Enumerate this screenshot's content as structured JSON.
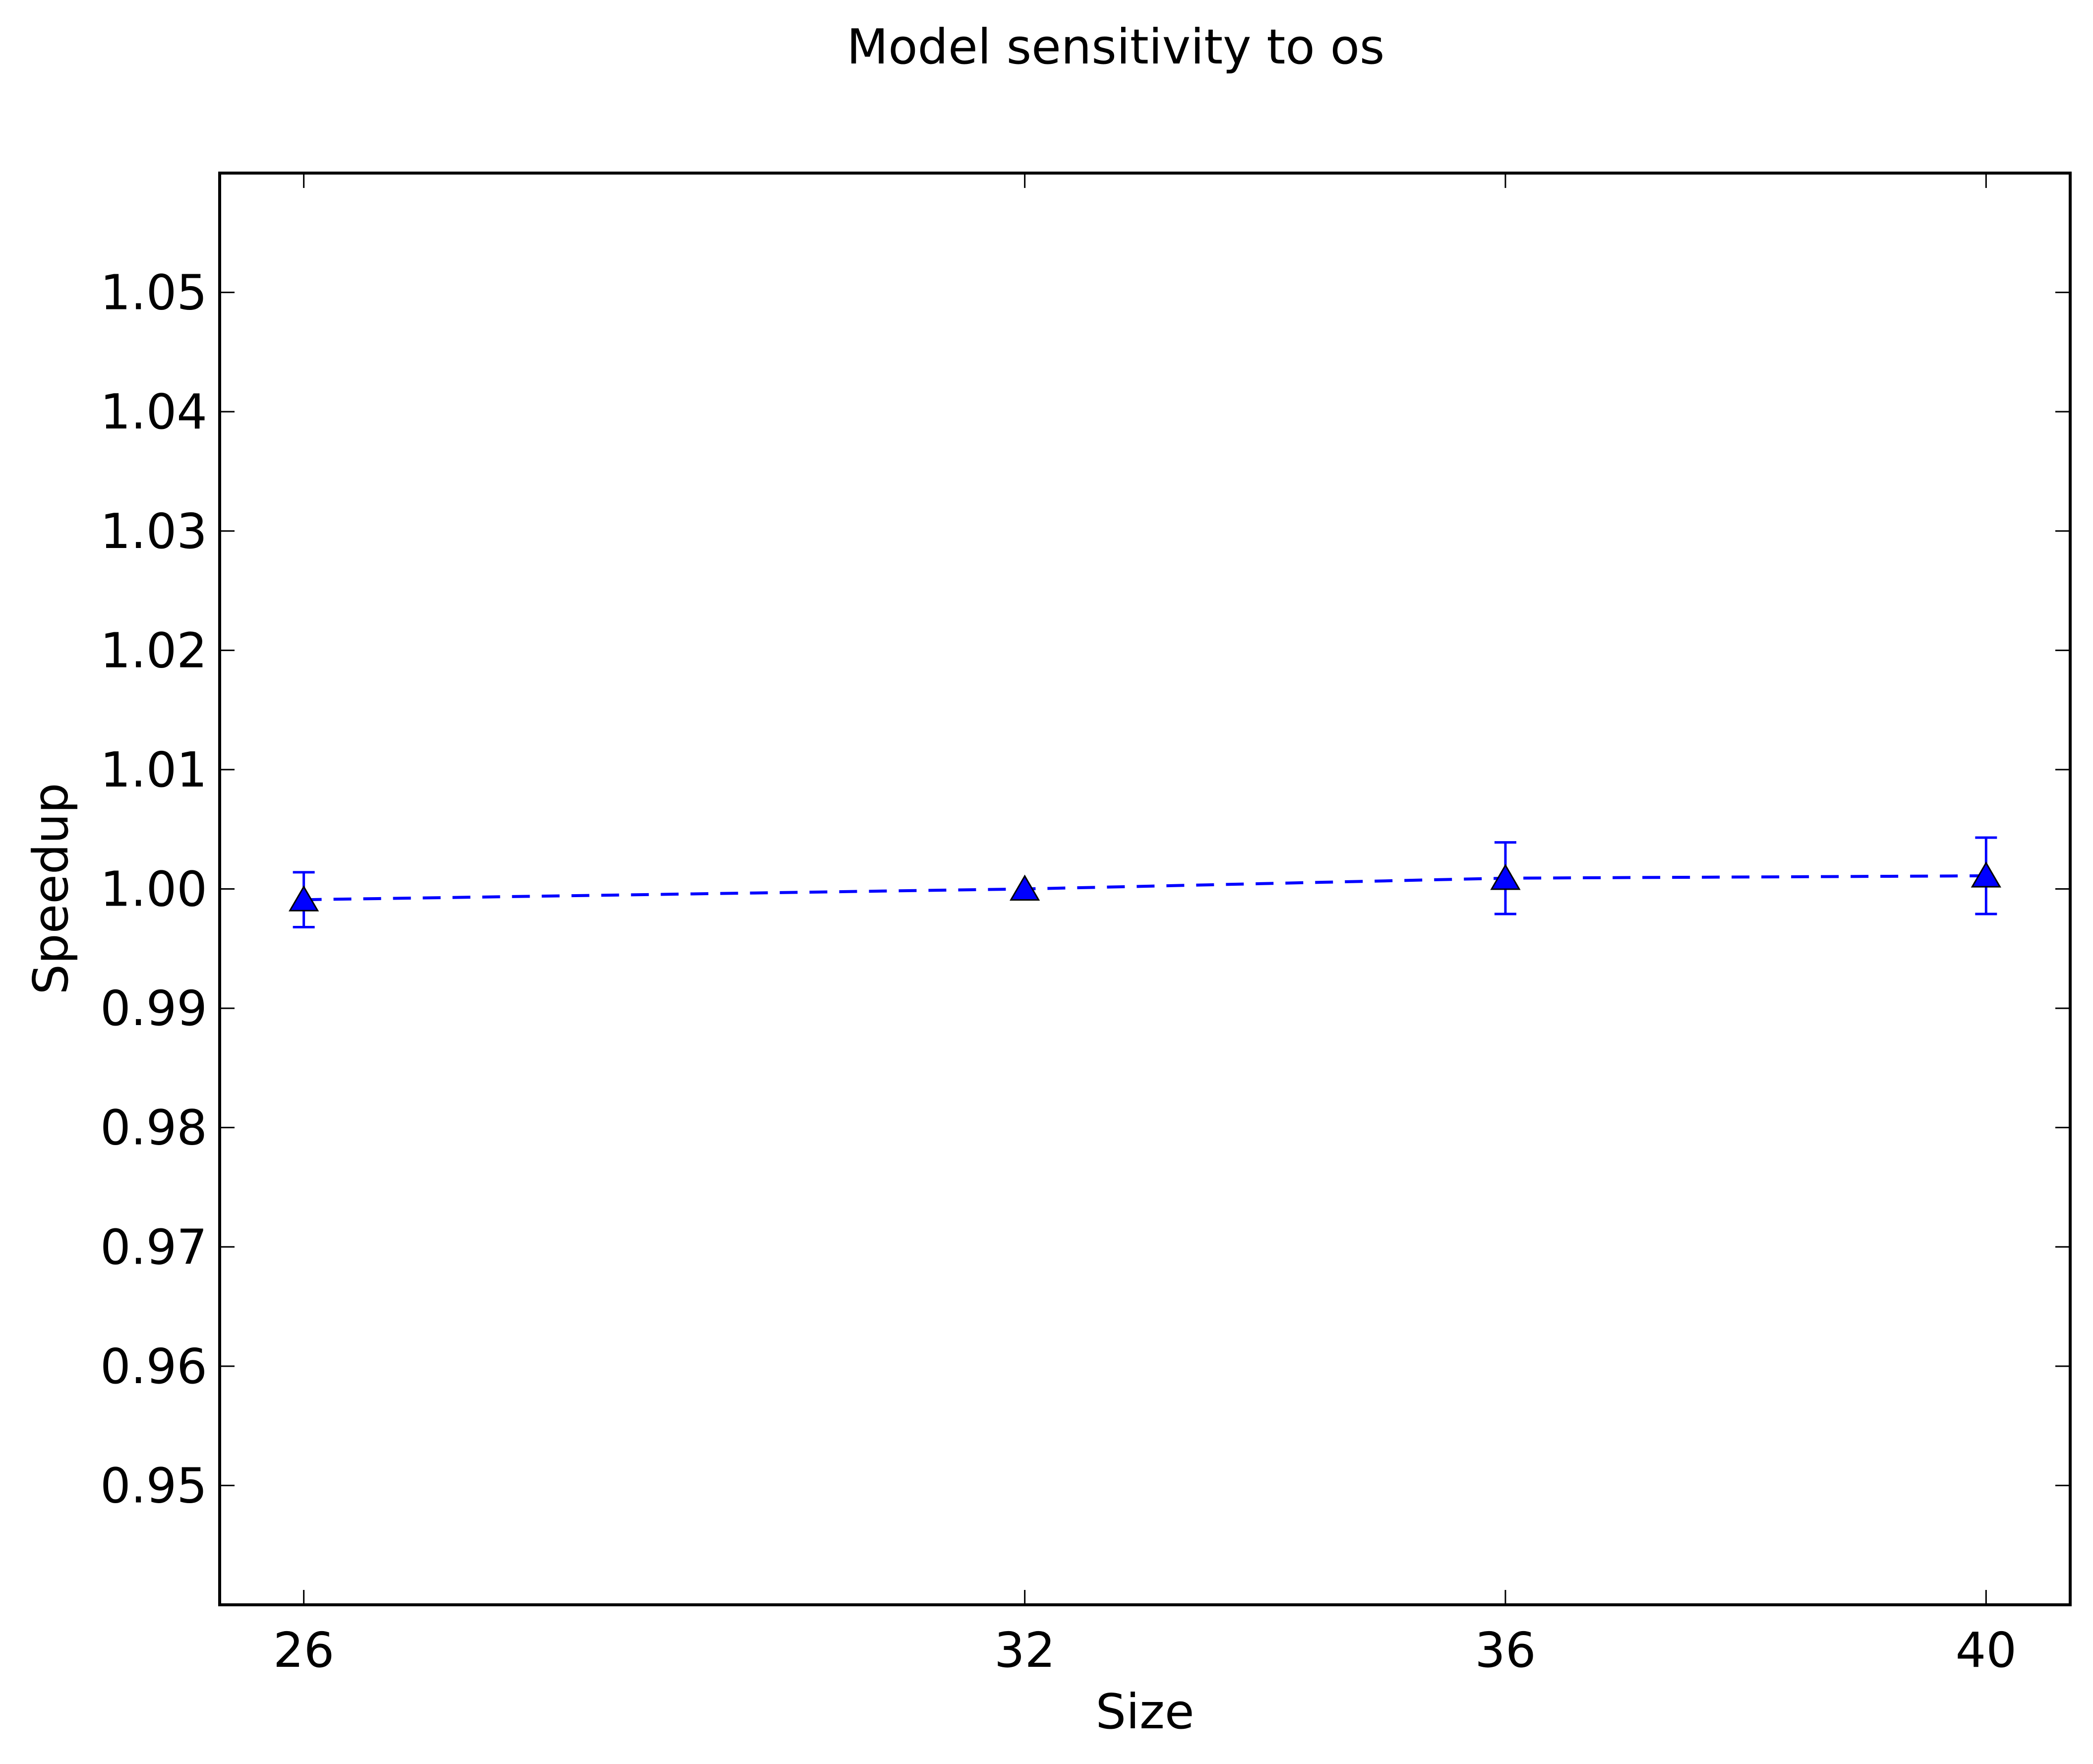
{
  "chart_data": {
    "type": "line",
    "title": "Model sensitivity to os",
    "xlabel": "Size",
    "ylabel": "Speedup",
    "x": [
      26,
      32,
      36,
      40
    ],
    "xticks": [
      26,
      32,
      36,
      40
    ],
    "xlim": [
      25.3,
      40.7
    ],
    "ylim": [
      0.94,
      1.06
    ],
    "yticks": [
      0.95,
      0.96,
      0.97,
      0.98,
      0.99,
      1.0,
      1.01,
      1.02,
      1.03,
      1.04,
      1.05
    ],
    "ytick_labels": [
      "0.95",
      "0.96",
      "0.97",
      "0.98",
      "0.99",
      "1.00",
      "1.01",
      "1.02",
      "1.03",
      "1.04",
      "1.05"
    ],
    "grid": false,
    "series": [
      {
        "values": [
          0.9991,
          1.0,
          1.0009,
          1.0011
        ],
        "error": [
          0.0023,
          0.0,
          0.003,
          0.0032
        ],
        "color": "#0000ff",
        "linestyle": "dashed",
        "marker": "triangle-up"
      }
    ]
  }
}
